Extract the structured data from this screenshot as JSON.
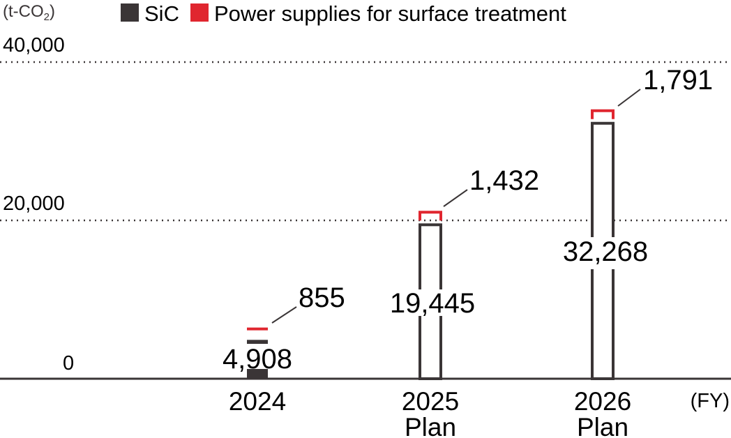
{
  "chart_data": {
    "type": "bar",
    "stacked": true,
    "unit_label": "(t-CO",
    "unit_subscript": "2",
    "unit_close": ")",
    "x_unit_label": "(FY)",
    "categories": [
      {
        "line1": "2024",
        "line2": ""
      },
      {
        "line1": "2025",
        "line2": "Plan"
      },
      {
        "line1": "2026",
        "line2": "Plan"
      }
    ],
    "series": [
      {
        "name": "SiC",
        "values": [
          4908,
          19445,
          32268
        ],
        "labels": [
          "4,908",
          "19,445",
          "32,268"
        ],
        "color": "#3a3536"
      },
      {
        "name": "Power supplies for surface treatment",
        "values": [
          855,
          1432,
          1791
        ],
        "labels": [
          "855",
          "1,432",
          "1,791"
        ],
        "color": "#e0262f"
      }
    ],
    "yticks": [
      {
        "value": 0,
        "label": "0"
      },
      {
        "value": 20000,
        "label": "20,000"
      },
      {
        "value": 40000,
        "label": "40,000"
      }
    ],
    "ylim": [
      0,
      40000
    ],
    "grid": "dotted at 20,000 and 40,000",
    "legend": "top-left",
    "axis_color": "#3a3536"
  }
}
